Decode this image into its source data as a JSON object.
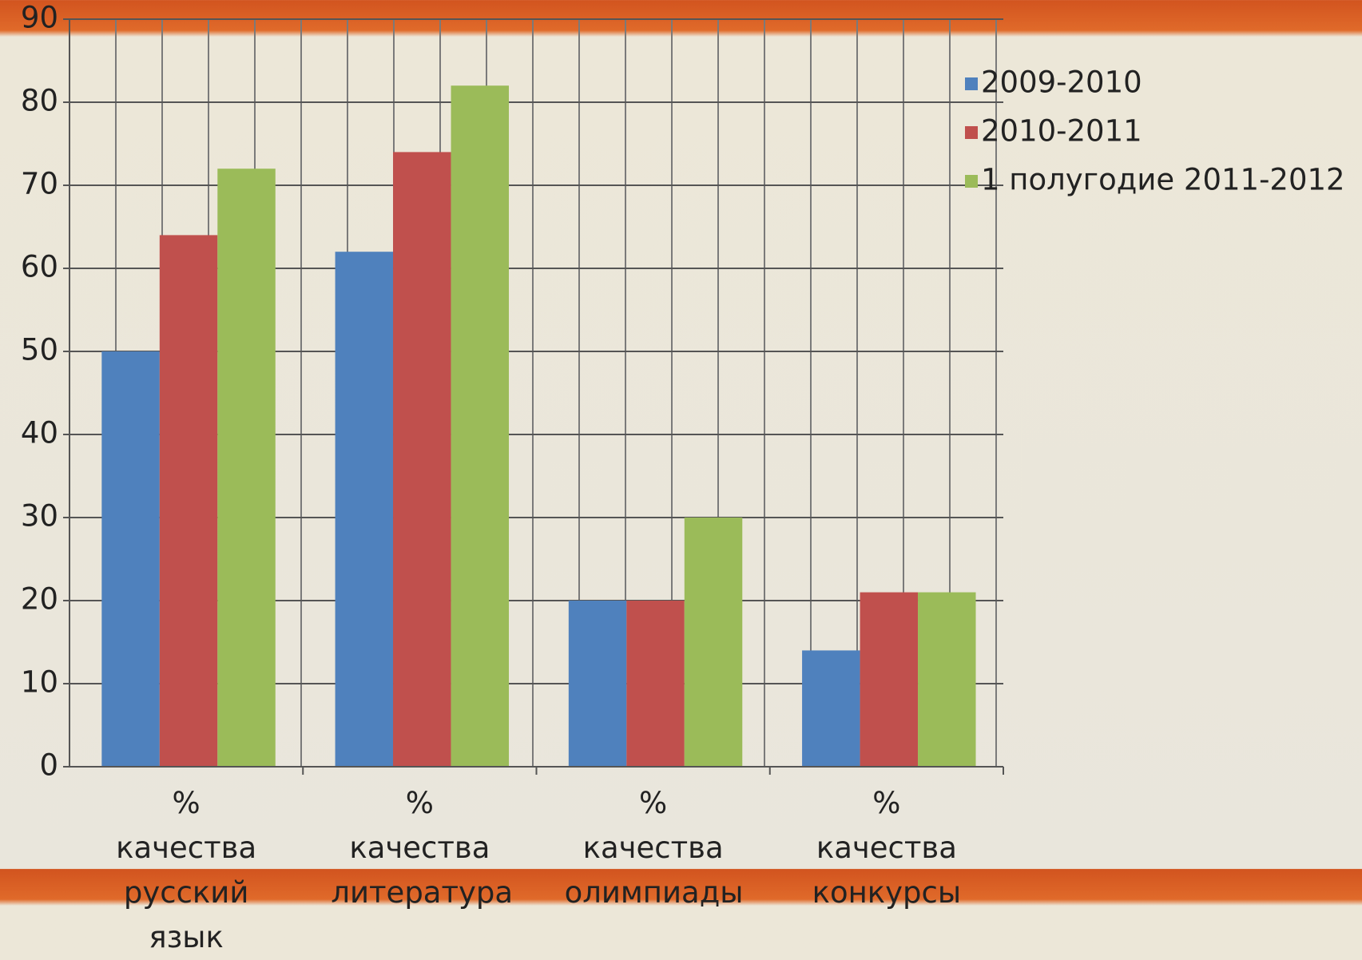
{
  "chart_data": {
    "type": "bar",
    "categories": [
      "% качества русский язык",
      "% качества литература",
      "% качества олимпиады",
      "% качества конкурсы"
    ],
    "series": [
      {
        "name": "2009-2010",
        "color": "#4f81bd",
        "values": [
          50,
          62,
          20,
          14
        ]
      },
      {
        "name": "2010-2011",
        "color": "#c0504d",
        "values": [
          64,
          74,
          20,
          21
        ]
      },
      {
        "name": "1 полугодие 2011-2012",
        "color": "#9bbb59",
        "values": [
          72,
          82,
          30,
          21
        ]
      }
    ],
    "ylim": [
      0,
      90
    ],
    "yticks": [
      0,
      10,
      20,
      30,
      40,
      50,
      60,
      70,
      80,
      90
    ],
    "grid": true,
    "legend": "right"
  }
}
